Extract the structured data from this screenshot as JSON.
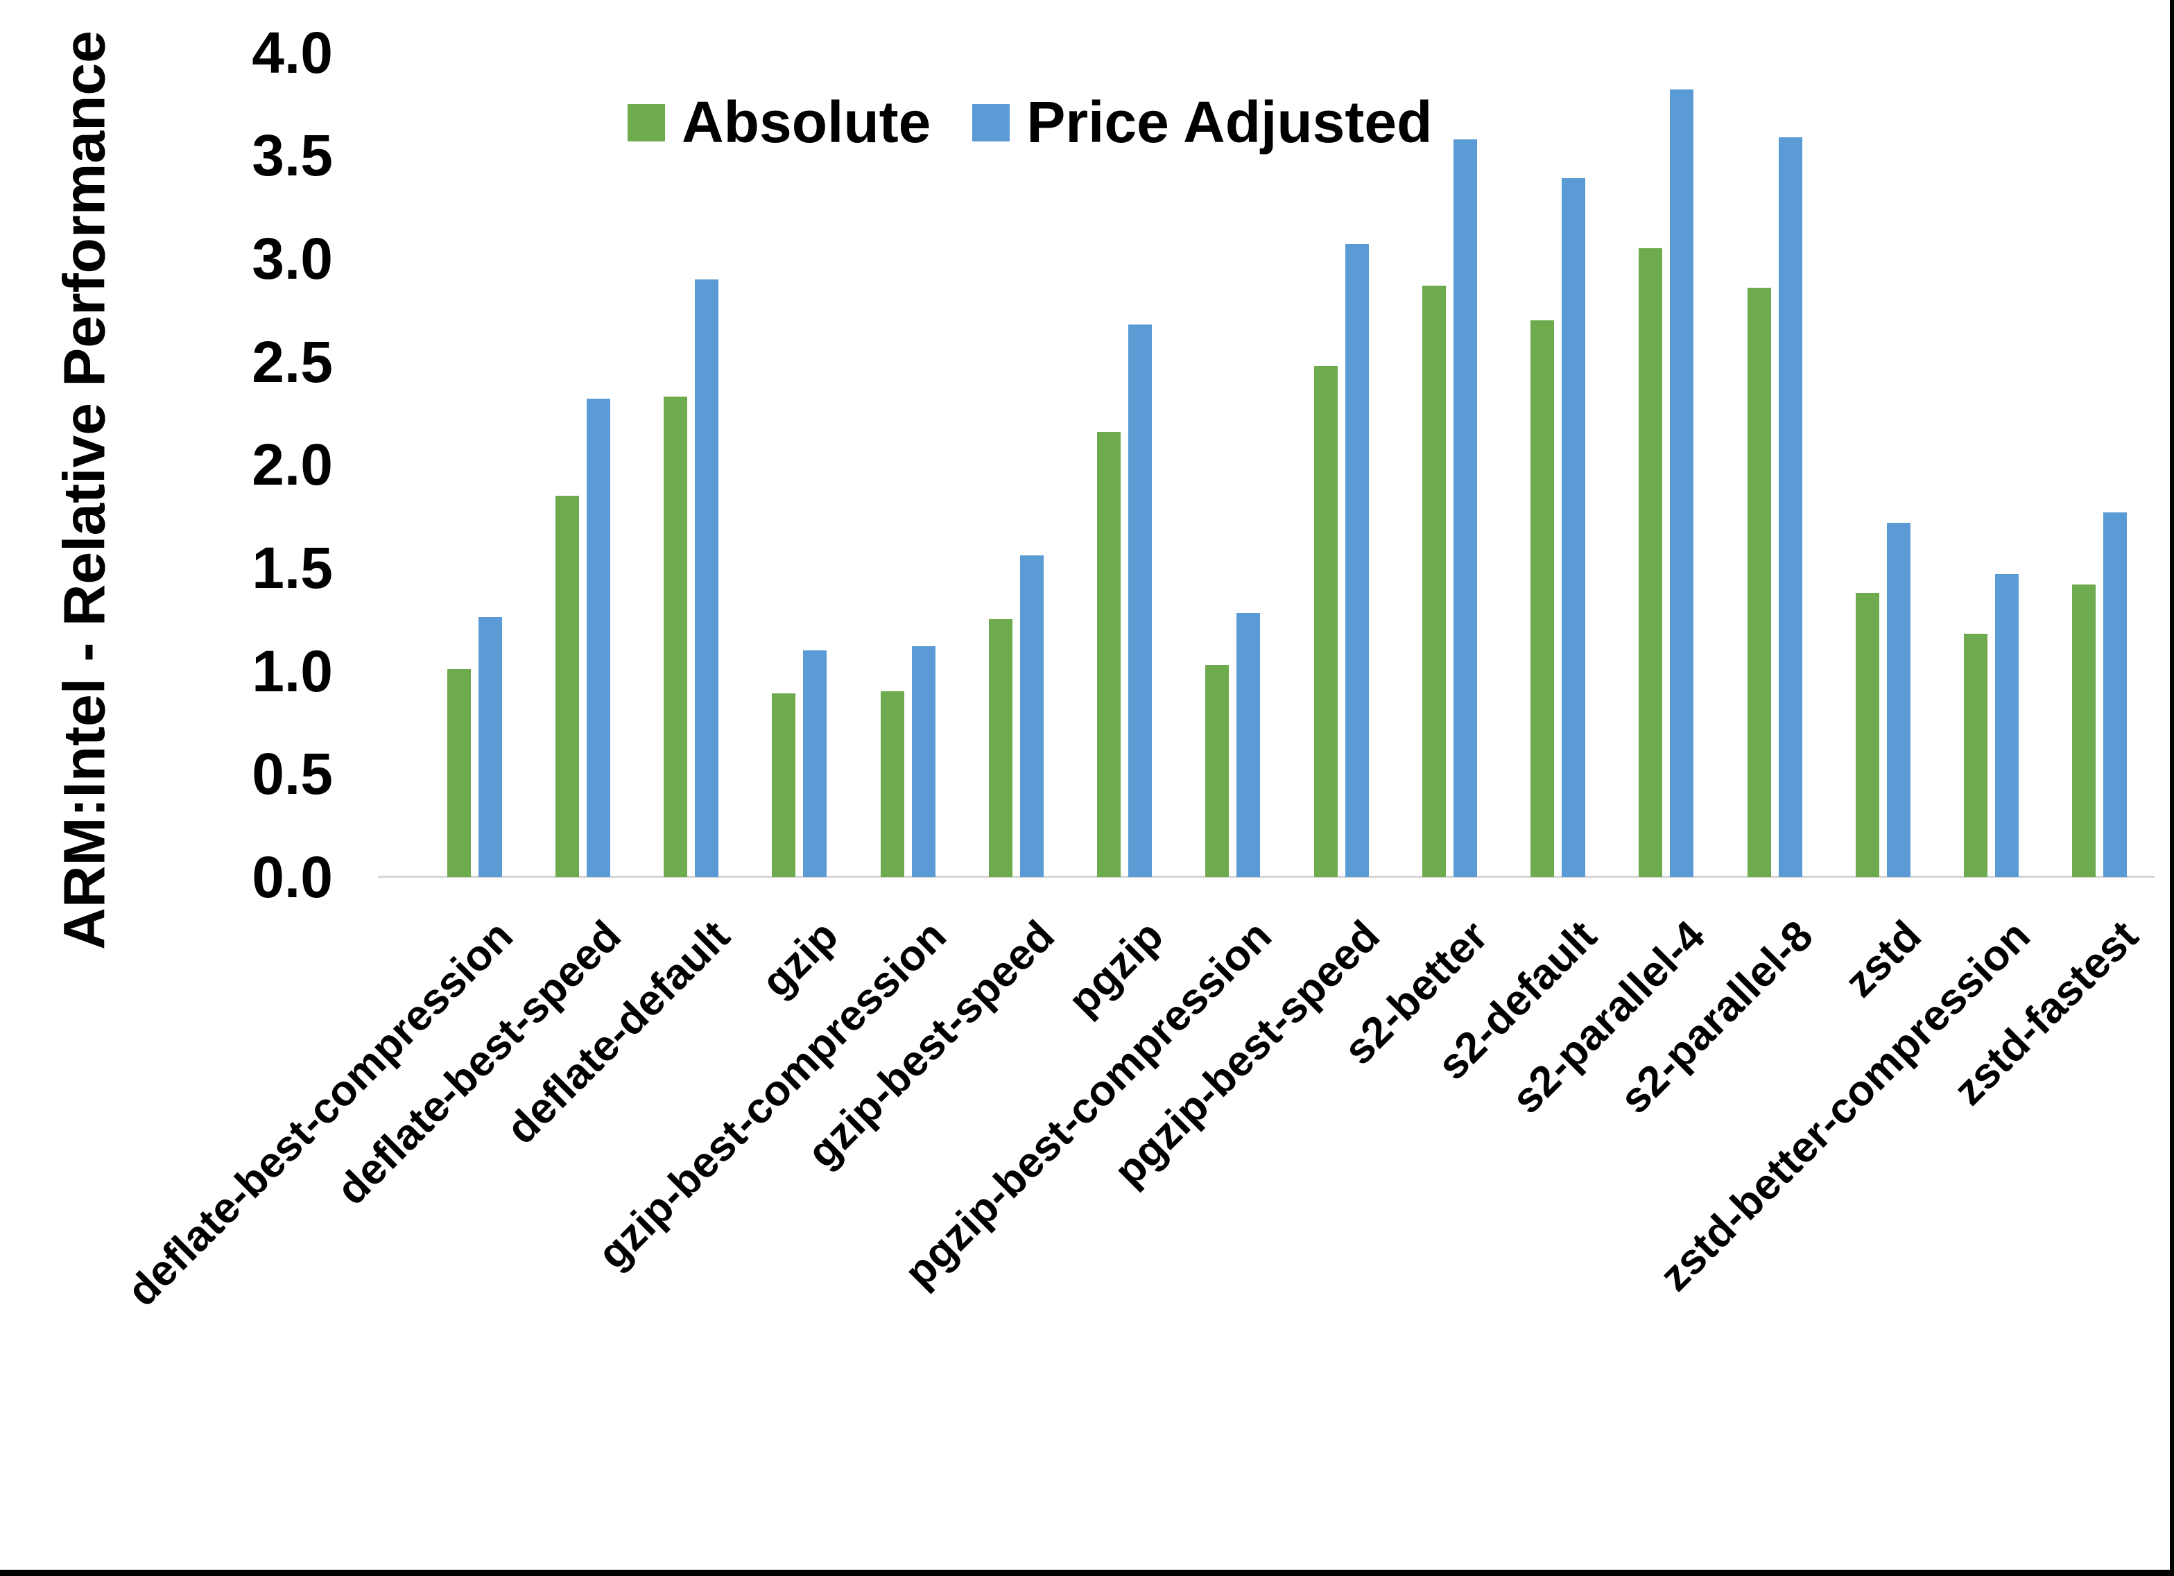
{
  "window": {
    "border_color": "#000000",
    "background": "#ffffff"
  },
  "chart_data": {
    "type": "bar",
    "title": "",
    "xlabel": "",
    "ylabel": "ARM:Intel - Relative Performance",
    "ylim": [
      0.0,
      4.0
    ],
    "yticks": [
      "0.0",
      "0.5",
      "1.0",
      "1.5",
      "2.0",
      "2.5",
      "3.0",
      "3.5",
      "4.0"
    ],
    "grid": false,
    "legend_position": "top-center",
    "axis_line_color": "#d6d6d6",
    "categories": [
      "deflate-best-compression",
      "deflate-best-speed",
      "deflate-default",
      "gzip",
      "gzip-best-compression",
      "gzip-best-speed",
      "pgzip",
      "pgzip-best-compression",
      "pgzip-best-speed",
      "s2-better",
      "s2-default",
      "s2-parallel-4",
      "s2-parallel-8",
      "zstd",
      "zstd-better-compression",
      "zstd-fastest"
    ],
    "series": [
      {
        "name": "Absolute",
        "color": "#6EAB4E",
        "values": [
          1.01,
          1.85,
          2.33,
          0.89,
          0.9,
          1.25,
          2.16,
          1.03,
          2.48,
          2.87,
          2.7,
          3.05,
          2.86,
          1.38,
          1.18,
          1.42
        ]
      },
      {
        "name": "Price Adjusted",
        "color": "#5B9BD5",
        "values": [
          1.26,
          2.32,
          2.9,
          1.1,
          1.12,
          1.56,
          2.68,
          1.28,
          3.07,
          3.58,
          3.39,
          3.82,
          3.59,
          1.72,
          1.47,
          1.77
        ]
      }
    ]
  }
}
